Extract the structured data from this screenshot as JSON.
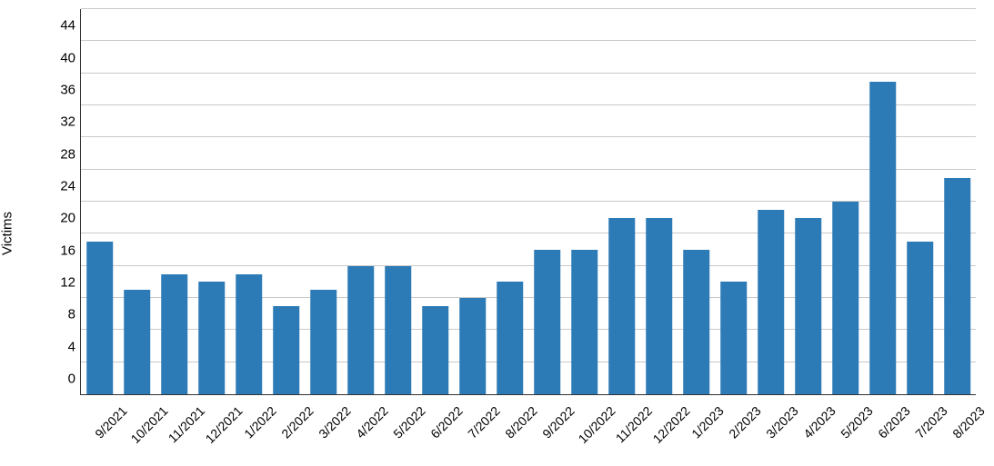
{
  "chart": {
    "type": "bar",
    "y_axis_title": "Victims",
    "categories": [
      "9/2021",
      "10/2021",
      "11/2021",
      "12/2021",
      "1/2022",
      "2/2022",
      "3/2022",
      "4/2022",
      "5/2022",
      "6/2022",
      "7/2022",
      "8/2022",
      "9/2022",
      "10/2022",
      "11/2022",
      "12/2022",
      "1/2023",
      "2/2023",
      "3/2023",
      "4/2023",
      "5/2023",
      "6/2023",
      "7/2023",
      "8/2023"
    ],
    "values": [
      19,
      13,
      15,
      14,
      15,
      11,
      13,
      16,
      16,
      11,
      12,
      14,
      18,
      18,
      22,
      22,
      18,
      14,
      23,
      22,
      24,
      39,
      19,
      27
    ],
    "ylim": [
      0,
      48
    ],
    "ytick_step": 4,
    "bar_color": "#2c7bb6",
    "grid_color": "#c9c9c9",
    "axis_color": "#333333",
    "background_color": "#ffffff",
    "bar_width_ratio": 0.72,
    "label_fontsize": 15,
    "tick_fontsize": 15,
    "x_tick_fontsize": 14,
    "x_tick_rotation_deg": -45
  }
}
